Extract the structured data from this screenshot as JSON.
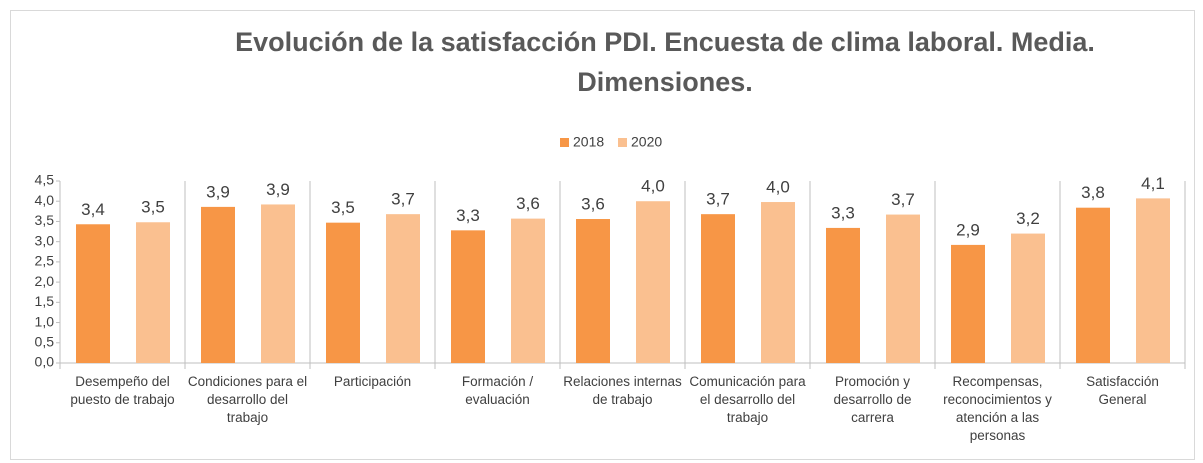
{
  "chart_data": {
    "type": "bar",
    "title": "Evolución de la satisfacción PDI. Encuesta de clima laboral. Media. Dimensiones.",
    "categories": [
      "Desempeño del puesto de trabajo",
      "Condiciones para el desarrollo del trabajo",
      "Participación",
      "Formación / evaluación",
      "Relaciones internas de trabajo",
      "Comunicación para el desarrollo del trabajo",
      "Promoción y desarrollo de carrera",
      "Recompensas, reconocimientos y atención a las personas",
      "Satisfacción General"
    ],
    "series": [
      {
        "name": "2018",
        "color": "#f79646",
        "values": [
          3.43,
          3.86,
          3.47,
          3.28,
          3.56,
          3.68,
          3.34,
          2.92,
          3.84
        ],
        "value_labels": [
          "3,4",
          "3,9",
          "3,5",
          "3,3",
          "3,6",
          "3,7",
          "3,3",
          "2,9",
          "3,8"
        ]
      },
      {
        "name": "2020",
        "color": "#fac090",
        "values": [
          3.48,
          3.92,
          3.68,
          3.57,
          4.0,
          3.98,
          3.67,
          3.2,
          4.07
        ],
        "value_labels": [
          "3,5",
          "3,9",
          "3,7",
          "3,6",
          "4,0",
          "4,0",
          "3,7",
          "3,2",
          "4,1"
        ]
      }
    ],
    "ylim": [
      0,
      4.5
    ],
    "yticks": [
      {
        "value": 0,
        "label": "0,0"
      },
      {
        "value": 0.5,
        "label": "0,5"
      },
      {
        "value": 1,
        "label": "1,0"
      },
      {
        "value": 1.5,
        "label": "1,5"
      },
      {
        "value": 2,
        "label": "2,0"
      },
      {
        "value": 2.5,
        "label": "2,5"
      },
      {
        "value": 3,
        "label": "3,0"
      },
      {
        "value": 3.5,
        "label": "3,5"
      },
      {
        "value": 4,
        "label": "4,0"
      },
      {
        "value": 4.5,
        "label": "4,5"
      }
    ],
    "legend": "top",
    "grid": false
  }
}
